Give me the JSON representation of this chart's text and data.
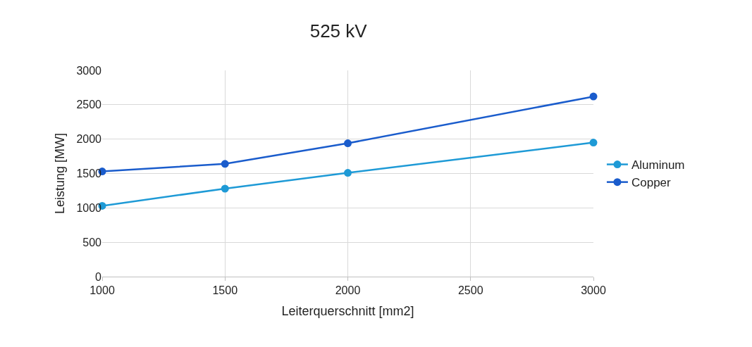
{
  "chart_data": {
    "type": "line",
    "title": "525 kV",
    "xlabel": "Leiterquerschnitt [mm2]",
    "ylabel": "Leistung [MW]",
    "x": [
      1000,
      1500,
      2000,
      3000
    ],
    "series": [
      {
        "name": "Aluminum",
        "color": "#1e9ad6",
        "values": [
          1030,
          1280,
          1510,
          1950
        ]
      },
      {
        "name": "Copper",
        "color": "#1a5ccc",
        "values": [
          1530,
          1640,
          1940,
          2620
        ]
      }
    ],
    "xlim": [
      1000,
      3000
    ],
    "xticks": [
      1000,
      1500,
      2000,
      2500,
      3000
    ],
    "ylim": [
      0,
      3000
    ],
    "yticks": [
      0,
      500,
      1000,
      1500,
      2000,
      2500,
      3000
    ],
    "grid": true,
    "legend": "right",
    "marker": "circle",
    "line_style": "solid"
  }
}
